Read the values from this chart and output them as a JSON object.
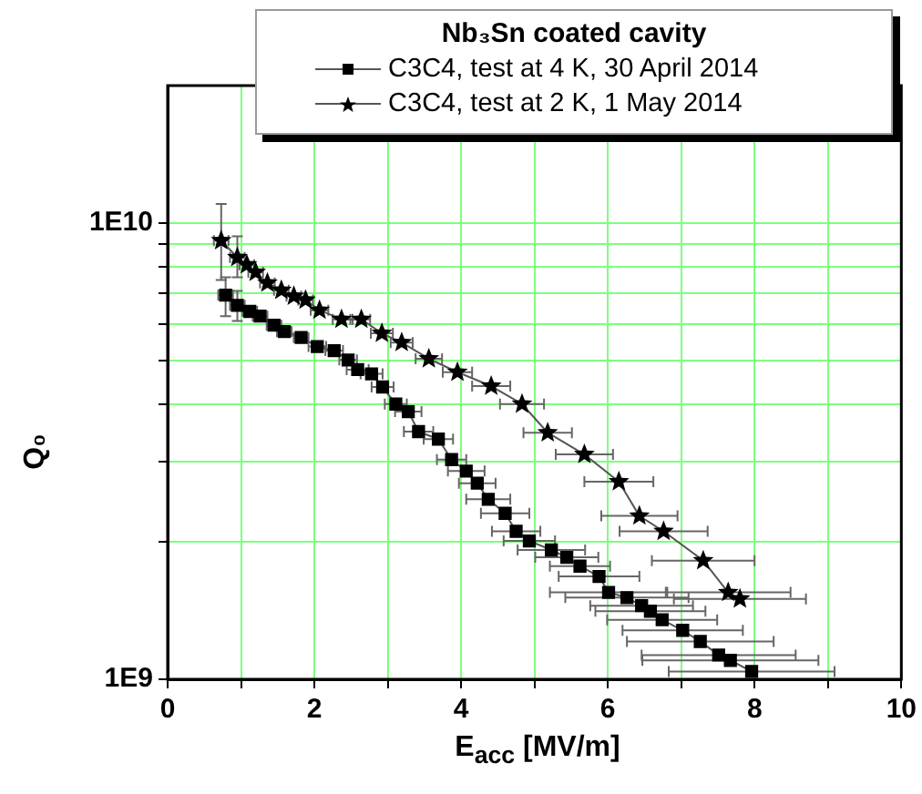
{
  "chart_data": {
    "type": "scatter",
    "legend_title": "Nb₃Sn coated cavity",
    "xlabel": "E$_{acc}$ [MV/m]",
    "ylabel": "Q₀",
    "xlim": [
      0,
      10
    ],
    "xticks": [
      0,
      {
        "value": 1,
        "label": null
      },
      2,
      {
        "value": 3,
        "label": null
      },
      4,
      {
        "value": 5,
        "label": null
      },
      6,
      {
        "value": 7,
        "label": null
      },
      8,
      {
        "value": 9,
        "label": null
      },
      10
    ],
    "ylim": [
      1000000000,
      20000000000
    ],
    "log": "y",
    "yticks": [
      {
        "value": 1000000000,
        "label": "1E9"
      },
      {
        "value": 2000000000,
        "label": null
      },
      {
        "value": 3000000000,
        "label": null
      },
      {
        "value": 4000000000,
        "label": null
      },
      {
        "value": 5000000000,
        "label": null
      },
      {
        "value": 6000000000,
        "label": null
      },
      {
        "value": 7000000000,
        "label": null
      },
      {
        "value": 8000000000,
        "label": null
      },
      {
        "value": 9000000000,
        "label": null
      },
      {
        "value": 10000000000,
        "label": "1E10"
      }
    ],
    "grid": true,
    "legend": "top right",
    "series": [
      {
        "name": "C3C4, test at 4 K, 30 April 2014",
        "color": "#000000",
        "type": "line",
        "marker": "square",
        "x": [
          0.79,
          0.95,
          1.12,
          1.26,
          1.45,
          1.59,
          1.82,
          2.04,
          2.27,
          2.46,
          2.59,
          2.78,
          2.93,
          3.11,
          3.28,
          3.42,
          3.69,
          3.87,
          4.07,
          4.22,
          4.37,
          4.6,
          4.75,
          4.93,
          5.23,
          5.44,
          5.62,
          5.88,
          6.01,
          6.26,
          6.46,
          6.58,
          6.74,
          7.02,
          7.26,
          7.51,
          7.67,
          7.96
        ],
        "values": [
          6950000000.0,
          6600000000.0,
          6400000000.0,
          6250000000.0,
          5970000000.0,
          5780000000.0,
          5610000000.0,
          5360000000.0,
          5250000000.0,
          5010000000.0,
          4770000000.0,
          4670000000.0,
          4370000000.0,
          4010000000.0,
          3860000000.0,
          3490000000.0,
          3360000000.0,
          3030000000.0,
          2860000000.0,
          2690000000.0,
          2480000000.0,
          2310000000.0,
          2110000000.0,
          2010000000.0,
          1920000000.0,
          1850000000.0,
          1770000000.0,
          1680000000.0,
          1550000000.0,
          1510000000.0,
          1450000000.0,
          1410000000.0,
          1350000000.0,
          1280000000.0,
          1210000000.0,
          1130000000.0,
          1100000000.0,
          1040000000.0
        ],
        "xerrors": [
          0.1,
          0.1,
          0.1,
          0.1,
          0.1,
          0.1,
          0.1,
          0.12,
          0.12,
          0.12,
          0.15,
          0.15,
          0.15,
          0.15,
          0.18,
          0.2,
          0.2,
          0.2,
          0.25,
          0.25,
          0.3,
          0.33,
          0.33,
          0.35,
          0.46,
          0.43,
          0.41,
          0.55,
          0.8,
          0.84,
          0.7,
          0.75,
          0.75,
          0.82,
          1.0,
          1.05,
          1.2,
          1.13
        ],
        "errors": [
          [
            6250000000.0,
            7600000000.0
          ],
          [
            6100000000.0,
            7100000000.0
          ],
          null,
          null,
          null,
          null,
          null,
          null,
          null,
          null,
          null,
          null,
          null,
          null,
          null,
          null,
          null,
          null,
          null,
          null,
          null,
          null,
          null,
          null,
          null,
          null,
          null,
          null,
          null,
          null,
          null,
          null,
          null,
          null,
          null,
          null,
          null,
          null
        ]
      },
      {
        "name": "C3C4, test at 2 K, 1 May 2014",
        "color": "#000000",
        "type": "line",
        "marker": "star",
        "x": [
          0.73,
          0.95,
          1.08,
          1.2,
          1.36,
          1.55,
          1.72,
          1.88,
          2.07,
          2.37,
          2.64,
          2.92,
          3.19,
          3.56,
          3.95,
          4.41,
          4.83,
          5.18,
          5.68,
          6.15,
          6.43,
          6.76,
          7.3,
          7.64,
          7.8
        ],
        "values": [
          9150000000.0,
          8400000000.0,
          8100000000.0,
          7800000000.0,
          7390000000.0,
          7120000000.0,
          6910000000.0,
          6780000000.0,
          6440000000.0,
          6150000000.0,
          6150000000.0,
          5730000000.0,
          5470000000.0,
          5040000000.0,
          4710000000.0,
          4390000000.0,
          4010000000.0,
          3470000000.0,
          3110000000.0,
          2710000000.0,
          2280000000.0,
          2110000000.0,
          1820000000.0,
          1550000000.0,
          1500000000.0
        ],
        "xerrors": [
          0.1,
          0.1,
          0.1,
          0.1,
          0.1,
          0.1,
          0.1,
          0.1,
          0.12,
          0.12,
          0.12,
          0.15,
          0.15,
          0.18,
          0.2,
          0.26,
          0.3,
          0.33,
          0.39,
          0.47,
          0.52,
          0.6,
          0.7,
          0.85,
          0.9
        ],
        "errors": [
          [
            7500000000.0,
            11000000000.0
          ],
          [
            7600000000.0,
            9350000000.0
          ],
          null,
          null,
          null,
          null,
          null,
          null,
          null,
          null,
          null,
          null,
          null,
          null,
          null,
          null,
          null,
          null,
          null,
          null,
          null,
          null,
          null,
          null,
          null
        ]
      }
    ]
  }
}
